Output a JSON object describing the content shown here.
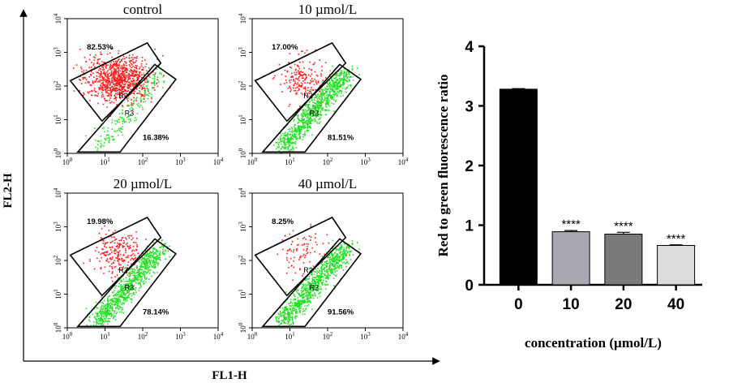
{
  "figure": {
    "axis_y_label": "FL2-H",
    "axis_x_label": "FL1-H"
  },
  "panels": [
    {
      "title": "control",
      "r2_pct": "82.53%",
      "r3_pct": "16.38%",
      "red_density": 1.0,
      "green_density": 0.2
    },
    {
      "title": "10 µmol/L",
      "r2_pct": "17.00%",
      "r3_pct": "81.51%",
      "red_density": 0.22,
      "green_density": 1.0
    },
    {
      "title": "20 µmol/L",
      "r2_pct": "19.98%",
      "r3_pct": "78.14%",
      "red_density": 0.26,
      "green_density": 0.96
    },
    {
      "title": "40 µmol/L",
      "r2_pct": "8.25%",
      "r3_pct": "91.56%",
      "red_density": 0.1,
      "green_density": 1.0
    }
  ],
  "gate_labels": {
    "r2": "R2",
    "r3": "R3"
  },
  "axis_ticks": {
    "x": [
      "10^0",
      "10^1",
      "10^2",
      "10^3",
      "10^4"
    ],
    "y": [
      "10^0",
      "10^1",
      "10^2",
      "10^3",
      "10^4"
    ]
  },
  "chart_data": {
    "type": "bar",
    "title": "",
    "categories": [
      "0",
      "10",
      "20",
      "40"
    ],
    "values": [
      3.28,
      0.89,
      0.85,
      0.66
    ],
    "errors": [
      0.01,
      0.02,
      0.03,
      0.01
    ],
    "significance": [
      "",
      "****",
      "****",
      "****"
    ],
    "colors": [
      "#000000",
      "#a8a8b0",
      "#7a7a7a",
      "#dcdcdc"
    ],
    "xlabel": "concentration (µmol/L)",
    "ylabel": "Red to green fluorescence ratio",
    "ylim": [
      0,
      4
    ],
    "yticks": [
      "0",
      "1",
      "2",
      "3",
      "4"
    ],
    "grid": false
  }
}
